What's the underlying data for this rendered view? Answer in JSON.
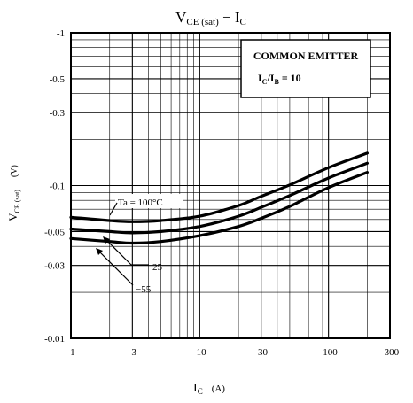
{
  "chart_data": {
    "type": "line",
    "title": {
      "main": "V",
      "main_sub": "CE (sat)",
      "sep": " − ",
      "var": "I",
      "var_sub": "C"
    },
    "xlabel": {
      "main": "I",
      "sub": "C",
      "unit": "(A)"
    },
    "ylabel": {
      "main": "V",
      "sub": "CE (sat)",
      "unit": "(V)"
    },
    "x_scale": "log",
    "y_scale": "log",
    "xlim": [
      -1,
      -300
    ],
    "ylim": [
      -0.01,
      -1
    ],
    "x_ticks": [
      "-1",
      "-3",
      "-10",
      "-30",
      "-100",
      "-300"
    ],
    "x_tick_values": [
      -1,
      -3,
      -10,
      -30,
      -100,
      -300
    ],
    "y_ticks": [
      "-1",
      "-0.5",
      "-0.3",
      "-0.1",
      "-0.05",
      "-0.03",
      "-0.01"
    ],
    "y_tick_values": [
      -1,
      -0.5,
      -0.3,
      -0.1,
      -0.05,
      -0.03,
      -0.01
    ],
    "grid": true,
    "info_box": {
      "line1": "COMMON EMITTER",
      "line2_main": "I",
      "line2_sub1": "C",
      "line2_mid": "/I",
      "line2_sub2": "B",
      "line2_end": " = 10"
    },
    "series": [
      {
        "name": "Ta = 100°C",
        "x": [
          -1,
          -2,
          -3,
          -5,
          -10,
          -20,
          -30,
          -50,
          -100,
          -200
        ],
        "y": [
          -0.062,
          -0.059,
          -0.058,
          -0.059,
          -0.063,
          -0.074,
          -0.085,
          -0.101,
          -0.131,
          -0.163
        ]
      },
      {
        "name": "25",
        "x": [
          -1,
          -2,
          -3,
          -5,
          -10,
          -20,
          -30,
          -50,
          -100,
          -200
        ],
        "y": [
          -0.052,
          -0.05,
          -0.049,
          -0.05,
          -0.054,
          -0.063,
          -0.072,
          -0.086,
          -0.112,
          -0.14
        ]
      },
      {
        "name": "−55",
        "x": [
          -1,
          -2,
          -3,
          -5,
          -10,
          -20,
          -30,
          -50,
          -100,
          -200
        ],
        "y": [
          -0.045,
          -0.043,
          -0.042,
          -0.043,
          -0.047,
          -0.054,
          -0.061,
          -0.073,
          -0.097,
          -0.122
        ]
      }
    ],
    "annotations": [
      "Ta = 100°C",
      "25",
      "−55"
    ]
  }
}
